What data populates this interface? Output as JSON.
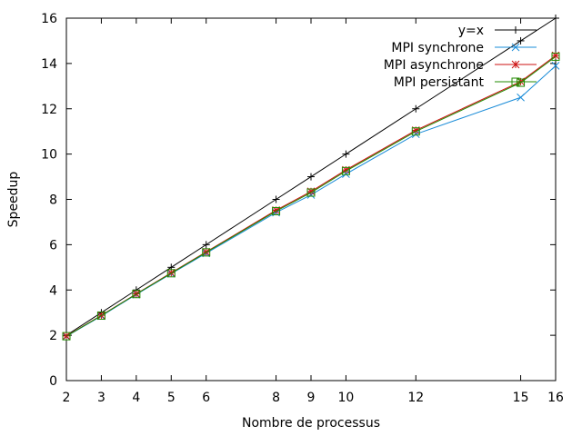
{
  "chart_data": {
    "type": "line",
    "title": "",
    "xlabel": "Nombre de processus",
    "ylabel": "Speedup",
    "xlim": [
      2,
      16
    ],
    "ylim": [
      0,
      16
    ],
    "xticks": [
      2,
      3,
      4,
      5,
      6,
      8,
      9,
      10,
      12,
      15,
      16
    ],
    "yticks": [
      0,
      2,
      4,
      6,
      8,
      10,
      12,
      14,
      16
    ],
    "grid": false,
    "legend_position": "top-right",
    "series": [
      {
        "name": "y=x",
        "color": "#000000",
        "marker": "plus",
        "x": [
          2,
          3,
          4,
          5,
          6,
          8,
          9,
          10,
          12,
          15,
          16
        ],
        "y": [
          2,
          3,
          4,
          5,
          6,
          8,
          9,
          10,
          12,
          15,
          16
        ]
      },
      {
        "name": "MPI synchrone",
        "color": "#1a8cd8",
        "marker": "x",
        "x": [
          2,
          3,
          4,
          5,
          6,
          8,
          9,
          10,
          12,
          15,
          16
        ],
        "y": [
          1.95,
          2.85,
          3.8,
          4.72,
          5.62,
          7.42,
          8.2,
          9.12,
          10.88,
          12.5,
          13.9
        ]
      },
      {
        "name": "MPI asynchrone",
        "color": "#cc1010",
        "marker": "asterisk",
        "x": [
          2,
          3,
          4,
          5,
          6,
          8,
          9,
          10,
          12,
          15,
          16
        ],
        "y": [
          1.97,
          2.88,
          3.83,
          4.76,
          5.68,
          7.52,
          8.35,
          9.3,
          11.05,
          13.2,
          14.35
        ]
      },
      {
        "name": "MPI persistant",
        "color": "#228b00",
        "marker": "square",
        "x": [
          2,
          3,
          4,
          5,
          6,
          8,
          9,
          10,
          12,
          15,
          16
        ],
        "y": [
          1.96,
          2.87,
          3.82,
          4.74,
          5.66,
          7.48,
          8.3,
          9.25,
          11.0,
          13.15,
          14.3
        ]
      }
    ]
  }
}
